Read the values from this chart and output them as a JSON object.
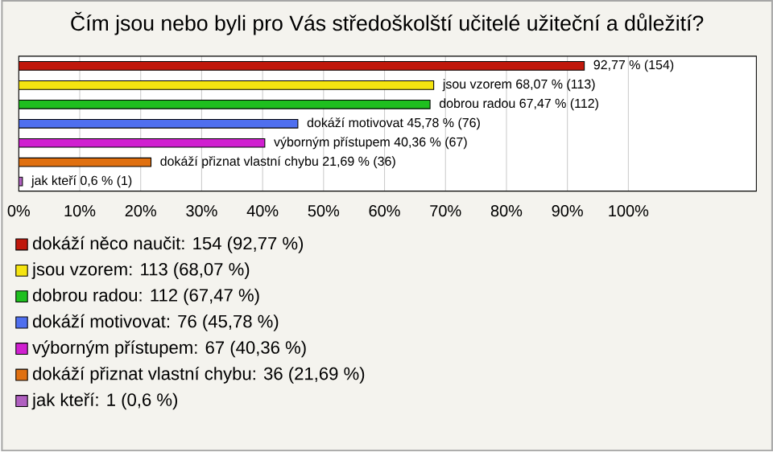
{
  "chart_data": {
    "type": "bar",
    "orientation": "horizontal",
    "title": "Čím jsou nebo byli pro Vás středoškolští učitelé užiteční a důležití?",
    "categories": [
      null,
      null,
      null,
      null,
      null,
      null,
      null
    ],
    "series": [
      {
        "name": "dokáží něco naučit: 154 (92,77 %)",
        "color": "#c0180c",
        "values": [
          92.77,
          null,
          null,
          null,
          null,
          null,
          null
        ],
        "value_labels": [
          "92,77 % (154)",
          null,
          null,
          null,
          null,
          null,
          null
        ]
      },
      {
        "name": "jsou vzorem: 113 (68,07 %)",
        "color": "#f5e410",
        "values": [
          null,
          68.07,
          null,
          null,
          null,
          null,
          null
        ],
        "value_labels": [
          null,
          "jsou vzorem 68,07 % (113)",
          null,
          null,
          null,
          null,
          null
        ]
      },
      {
        "name": "dobrou radou: 112 (67,47 %)",
        "color": "#1fbf1f",
        "values": [
          null,
          null,
          67.47,
          null,
          null,
          null,
          null
        ],
        "value_labels": [
          null,
          null,
          "dobrou radou 67,47 % (112)",
          null,
          null,
          null,
          null
        ]
      },
      {
        "name": "dokáží motivovat: 76 (45,78 %)",
        "color": "#4f6fef",
        "values": [
          null,
          null,
          null,
          45.78,
          null,
          null,
          null
        ],
        "value_labels": [
          null,
          null,
          null,
          "dokáží motivovat 45,78 % (76)",
          null,
          null,
          null
        ]
      },
      {
        "name": "výborným přístupem: 67 (40,36 %)",
        "color": "#d020d0",
        "values": [
          null,
          null,
          null,
          null,
          40.36,
          null,
          null
        ],
        "value_labels": [
          null,
          null,
          null,
          null,
          "výborným přístupem 40,36 % (67)",
          null,
          null
        ]
      },
      {
        "name": "dokáží přiznat vlastní chybu: 36 (21,69 %)",
        "color": "#e07010",
        "values": [
          null,
          null,
          null,
          null,
          null,
          21.69,
          null
        ],
        "value_labels": [
          null,
          null,
          null,
          null,
          null,
          "dokáží přiznat vlastní chybu 21,69 % (36)",
          null
        ]
      },
      {
        "name": "jak kteří: 1 (0,6 %)",
        "color": "#b060c0",
        "values": [
          null,
          null,
          null,
          null,
          null,
          null,
          0.6
        ],
        "value_labels": [
          null,
          null,
          null,
          null,
          null,
          null,
          "jak kteří 0,6 % (1)"
        ]
      }
    ],
    "xlim": [
      0,
      121
    ],
    "xticks": [
      {
        "value": 0,
        "label": "0%"
      },
      {
        "value": 10,
        "label": "10%"
      },
      {
        "value": 20,
        "label": "20%"
      },
      {
        "value": 30,
        "label": "30%"
      },
      {
        "value": 40,
        "label": "40%"
      },
      {
        "value": 50,
        "label": "50%"
      },
      {
        "value": 60,
        "label": "60%"
      },
      {
        "value": 70,
        "label": "70%"
      },
      {
        "value": 80,
        "label": "80%"
      },
      {
        "value": 90,
        "label": "90%"
      },
      {
        "value": 100,
        "label": "100%"
      }
    ],
    "tick_labels": "x",
    "grid": "x",
    "legend": "bottom"
  }
}
